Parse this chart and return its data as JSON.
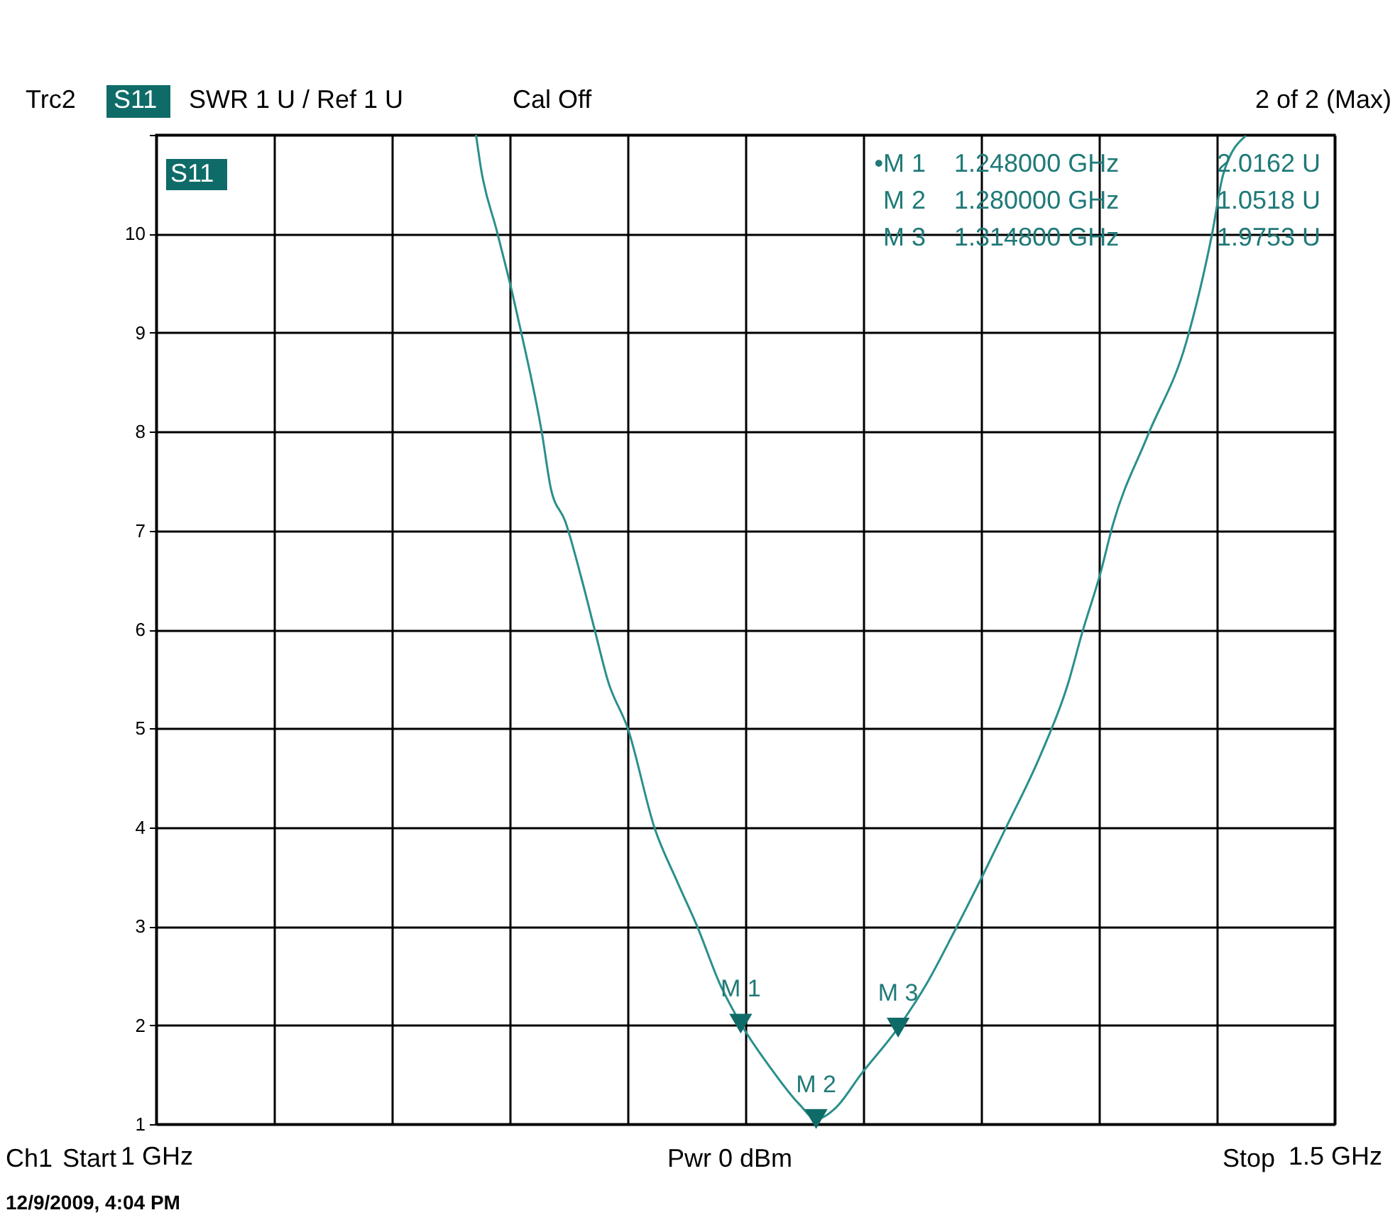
{
  "chart_data": {
    "type": "line",
    "annotations": [
      "Trc2",
      "S11",
      "SWR  1 U /  Ref 1 U",
      "Cal Off",
      "2 of 2 (Max)",
      "S11",
      "•M 1",
      "1.248000 GHz",
      "2.0162 U",
      "M 2",
      "1.280000 GHz",
      "1.0518 U",
      "M 3",
      "1.314800 GHz",
      "1.9753 U",
      "Ch1",
      "Start",
      "Pwr  0 dBm",
      "Stop",
      "12/9/2009, 4:04 PM"
    ],
    "series": [
      {
        "color": "#2a8f8c",
        "x": [
          1.1357,
          1.1378,
          1.1445,
          1.1507,
          1.1549,
          1.1637,
          1.1674,
          1.1736,
          1.1804,
          1.186,
          1.1918,
          1.2001,
          1.2115,
          1.2209,
          1.2297,
          1.2391,
          1.248,
          1.2609,
          1.2729,
          1.28,
          1.2885,
          1.2989,
          1.3148,
          1.3269,
          1.3389,
          1.3508,
          1.3604,
          1.3748,
          1.3867,
          1.3929,
          1.4005,
          1.4059,
          1.4205,
          1.4371,
          1.448,
          1.4527,
          1.4623
        ],
        "values": [
          11.0,
          10.66,
          10.03,
          9.44,
          9.0,
          7.98,
          7.43,
          7.09,
          6.52,
          6.0,
          5.47,
          5.0,
          3.99,
          3.46,
          2.99,
          2.42,
          2.0162,
          1.56,
          1.2,
          1.0518,
          1.17,
          1.5,
          1.9753,
          2.42,
          2.96,
          3.52,
          3.99,
          4.71,
          5.44,
          5.97,
          6.56,
          7.06,
          7.95,
          8.91,
          10.0,
          10.6,
          10.99
        ]
      },
      {
        "type": "scatter",
        "color": "#0e6b68",
        "marker": "triangle",
        "x": [
          1.248,
          1.28,
          1.3148
        ],
        "values": [
          2.0162,
          1.0518,
          1.9753
        ],
        "value_labels": [
          "M 1",
          "M 2",
          "M 3"
        ]
      }
    ],
    "xlim": [
      1,
      1.5
    ],
    "xticks": [
      {
        "value": 1,
        "label": "1 GHz"
      },
      {
        "value": 1.05,
        "label": null
      },
      {
        "value": 1.1,
        "label": null
      },
      {
        "value": 1.15,
        "label": null
      },
      {
        "value": 1.2,
        "label": null
      },
      {
        "value": 1.25,
        "label": null
      },
      {
        "value": 1.3,
        "label": null
      },
      {
        "value": 1.35,
        "label": null
      },
      {
        "value": 1.4,
        "label": null
      },
      {
        "value": 1.45,
        "label": null
      },
      {
        "value": 1.5,
        "label": "1.5 GHz"
      }
    ],
    "ylim": [
      1,
      11
    ],
    "yticks": [
      1,
      2,
      3,
      4,
      5,
      6,
      7,
      8,
      9,
      10,
      {
        "value": 11,
        "label": null
      }
    ],
    "grid": true
  }
}
